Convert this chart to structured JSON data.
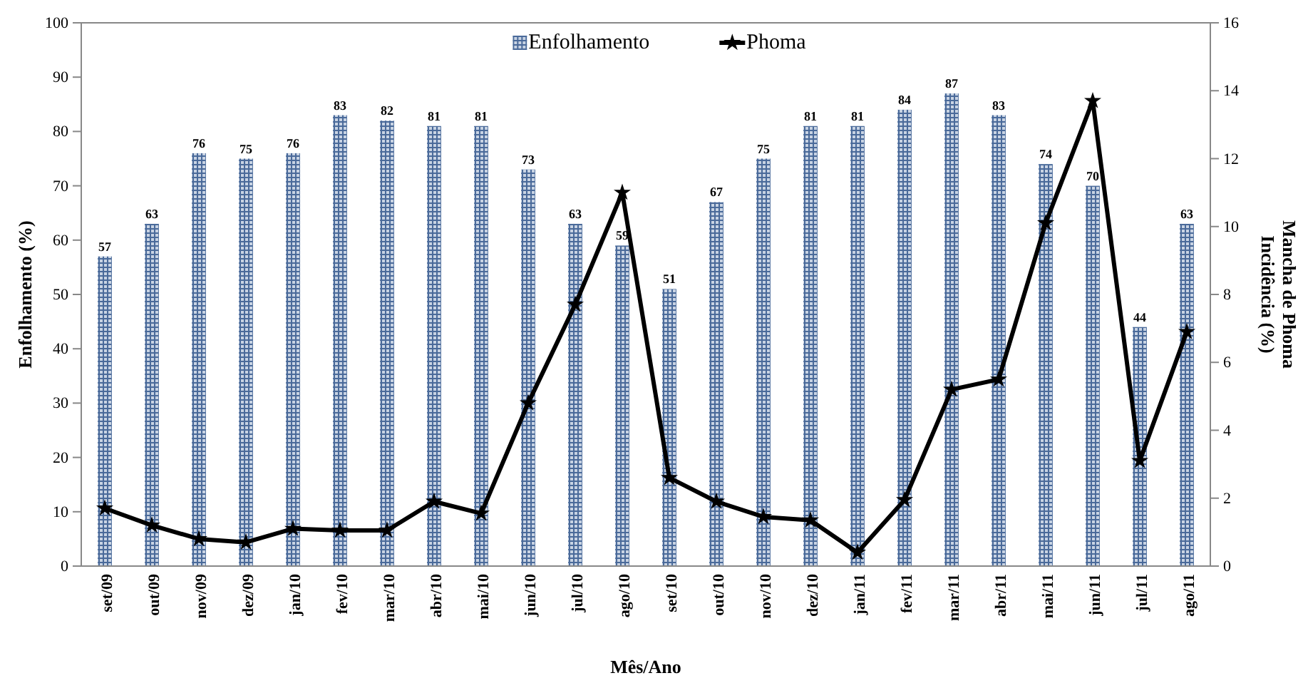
{
  "chart_data": {
    "type": "bar",
    "xlabel": "Mês/Ano",
    "ylabel": "Enfolhamento (%)",
    "y2label": "Mancha de Phoma\nIncidência (%)",
    "categories": [
      "set/09",
      "out/09",
      "nov/09",
      "dez/09",
      "jan/10",
      "fev/10",
      "mar/10",
      "abr/10",
      "mai/10",
      "jun/10",
      "jul/10",
      "ago/10",
      "set/10",
      "out/10",
      "nov/10",
      "dez/10",
      "jan/11",
      "fev/11",
      "mar/11",
      "abr/11",
      "mai/11",
      "jun/11",
      "jul/11",
      "ago/11"
    ],
    "series": [
      {
        "name": "Enfolhamento",
        "color": "#4a6a9a",
        "values": [
          57,
          63,
          76,
          75,
          76,
          83,
          82,
          81,
          81,
          73,
          63,
          59,
          51,
          67,
          75,
          81,
          81,
          84,
          87,
          83,
          74,
          70,
          44,
          63
        ],
        "value_labels": [
          "57",
          "63",
          "76",
          "75",
          "76",
          "83",
          "82",
          "81",
          "81",
          "73",
          "63",
          "59",
          "51",
          "67",
          "75",
          "81",
          "81",
          "84",
          "87",
          "83",
          "74",
          "70",
          "44",
          "63"
        ]
      },
      {
        "name": "Phoma",
        "type": "line",
        "axis": "y2",
        "color": "#000000",
        "marker": "star",
        "values": [
          1.7,
          1.2,
          0.8,
          0.7,
          1.1,
          1.05,
          1.05,
          1.9,
          1.55,
          4.8,
          7.7,
          11.0,
          2.6,
          1.9,
          1.45,
          1.35,
          0.4,
          1.95,
          5.2,
          5.5,
          10.1,
          13.7,
          3.1,
          6.9
        ]
      }
    ],
    "ylim": [
      0,
      100
    ],
    "yticks": [
      0,
      10,
      20,
      30,
      40,
      50,
      60,
      70,
      80,
      90,
      100
    ],
    "y2lim": [
      0,
      16
    ],
    "y2ticks": [
      0,
      2,
      4,
      6,
      8,
      10,
      12,
      14,
      16
    ],
    "legend": "top",
    "grid": false
  }
}
